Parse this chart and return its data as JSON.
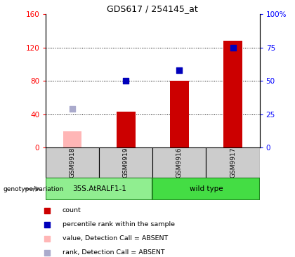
{
  "title": "GDS617 / 254145_at",
  "categories": [
    "GSM9918",
    "GSM9919",
    "GSM9916",
    "GSM9917"
  ],
  "count_values": [
    null,
    43,
    80,
    128
  ],
  "count_absent": [
    20,
    null,
    null,
    null
  ],
  "percentile_values_right": [
    null,
    50,
    58,
    75
  ],
  "percentile_absent_right": [
    29,
    null,
    null,
    null
  ],
  "ylim_left": [
    0,
    160
  ],
  "ylim_right": [
    0,
    100
  ],
  "yticks_left": [
    0,
    40,
    80,
    120,
    160
  ],
  "ytick_labels_left": [
    "0",
    "40",
    "80",
    "120",
    "160"
  ],
  "yticks_right": [
    0,
    25,
    50,
    75,
    100
  ],
  "ytick_labels_right": [
    "0",
    "25",
    "50",
    "75",
    "100%"
  ],
  "groups": [
    {
      "label": "35S.AtRALF1-1",
      "span": [
        0,
        2
      ],
      "color": "#90EE90"
    },
    {
      "label": "wild type",
      "span": [
        2,
        4
      ],
      "color": "#44DD44"
    }
  ],
  "group_label": "genotype/variation",
  "bar_color": "#CC0000",
  "bar_absent_color": "#FFB6B6",
  "dot_color": "#0000BB",
  "dot_absent_color": "#AAAACC",
  "bar_width": 0.35,
  "dot_size": 30,
  "legend_items": [
    {
      "label": "count",
      "color": "#CC0000"
    },
    {
      "label": "percentile rank within the sample",
      "color": "#0000BB"
    },
    {
      "label": "value, Detection Call = ABSENT",
      "color": "#FFB6B6"
    },
    {
      "label": "rank, Detection Call = ABSENT",
      "color": "#AAAACC"
    }
  ],
  "grid_yticks": [
    40,
    80,
    120
  ],
  "sample_bg": "#CCCCCC",
  "group_edge_color": "#228822"
}
